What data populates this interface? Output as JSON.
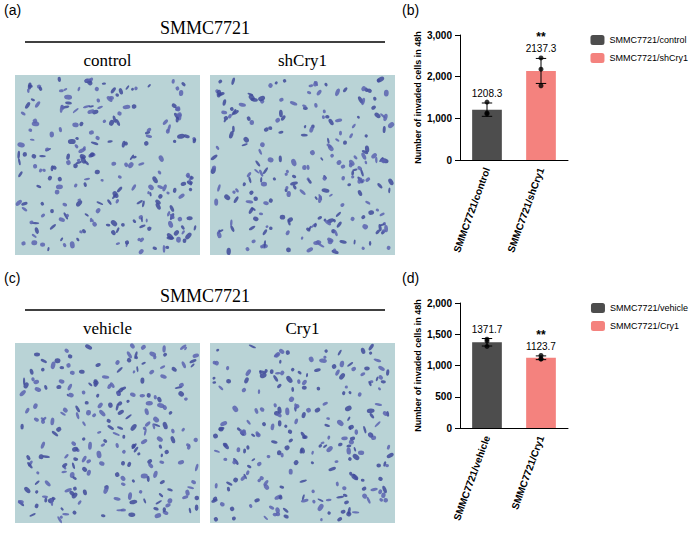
{
  "figure_panels": [
    {
      "panel": "(a)",
      "header": "SMMC7721",
      "image_labels": [
        "control",
        "shCry1"
      ]
    },
    {
      "panel": "(c)",
      "header": "SMMC7721",
      "image_labels": [
        "vehicle",
        "Cry1"
      ]
    }
  ],
  "chart_data": [
    {
      "panel": "(b)",
      "type": "bar",
      "ylabel": "Number of invaded cells in 48h",
      "categories": [
        "SMMC7721/control",
        "SMMC7721/shCry1"
      ],
      "series": [
        {
          "name": "SMMC7721/control",
          "color": "#4d4d4d",
          "values": [
            1208.3,
            null
          ],
          "errors": [
            160,
            null
          ],
          "points": [
            [
              1130,
              1390,
              1105
            ],
            null
          ]
        },
        {
          "name": "SMMC7721/shCry1",
          "color": "#f4827e",
          "values": [
            null,
            2137.3
          ],
          "errors": [
            null,
            300
          ],
          "points": [
            null,
            [
              2450,
              2180,
              1782
            ]
          ]
        }
      ],
      "ylim": [
        0,
        3000
      ],
      "yticks": [
        0,
        1000,
        2000,
        3000
      ],
      "grid": false,
      "data_labels": true,
      "legend": "right",
      "annotations": [
        {
          "category": "SMMC7721/shCry1",
          "text": "**"
        }
      ]
    },
    {
      "panel": "(d)",
      "type": "bar",
      "ylabel": "Number of invaded cells in 48h",
      "categories": [
        "SMMC7721/vehicle",
        "SMMC7721/Cry1"
      ],
      "series": [
        {
          "name": "SMMC7721/vehicle",
          "color": "#4d4d4d",
          "values": [
            1371.7,
            null
          ],
          "errors": [
            60,
            null
          ],
          "points": [
            [
              1420,
              1390,
              1305
            ],
            null
          ]
        },
        {
          "name": "SMMC7721/Cry1",
          "color": "#f4827e",
          "values": [
            null,
            1123.7
          ],
          "errors": [
            null,
            30
          ],
          "points": [
            null,
            [
              1160,
              1110,
              1101
            ]
          ]
        }
      ],
      "ylim": [
        0,
        2000
      ],
      "yticks": [
        0,
        500,
        1000,
        1500,
        2000
      ],
      "grid": false,
      "data_labels": true,
      "legend": "right",
      "annotations": [
        {
          "category": "SMMC7721/Cry1",
          "text": "**"
        }
      ]
    }
  ]
}
